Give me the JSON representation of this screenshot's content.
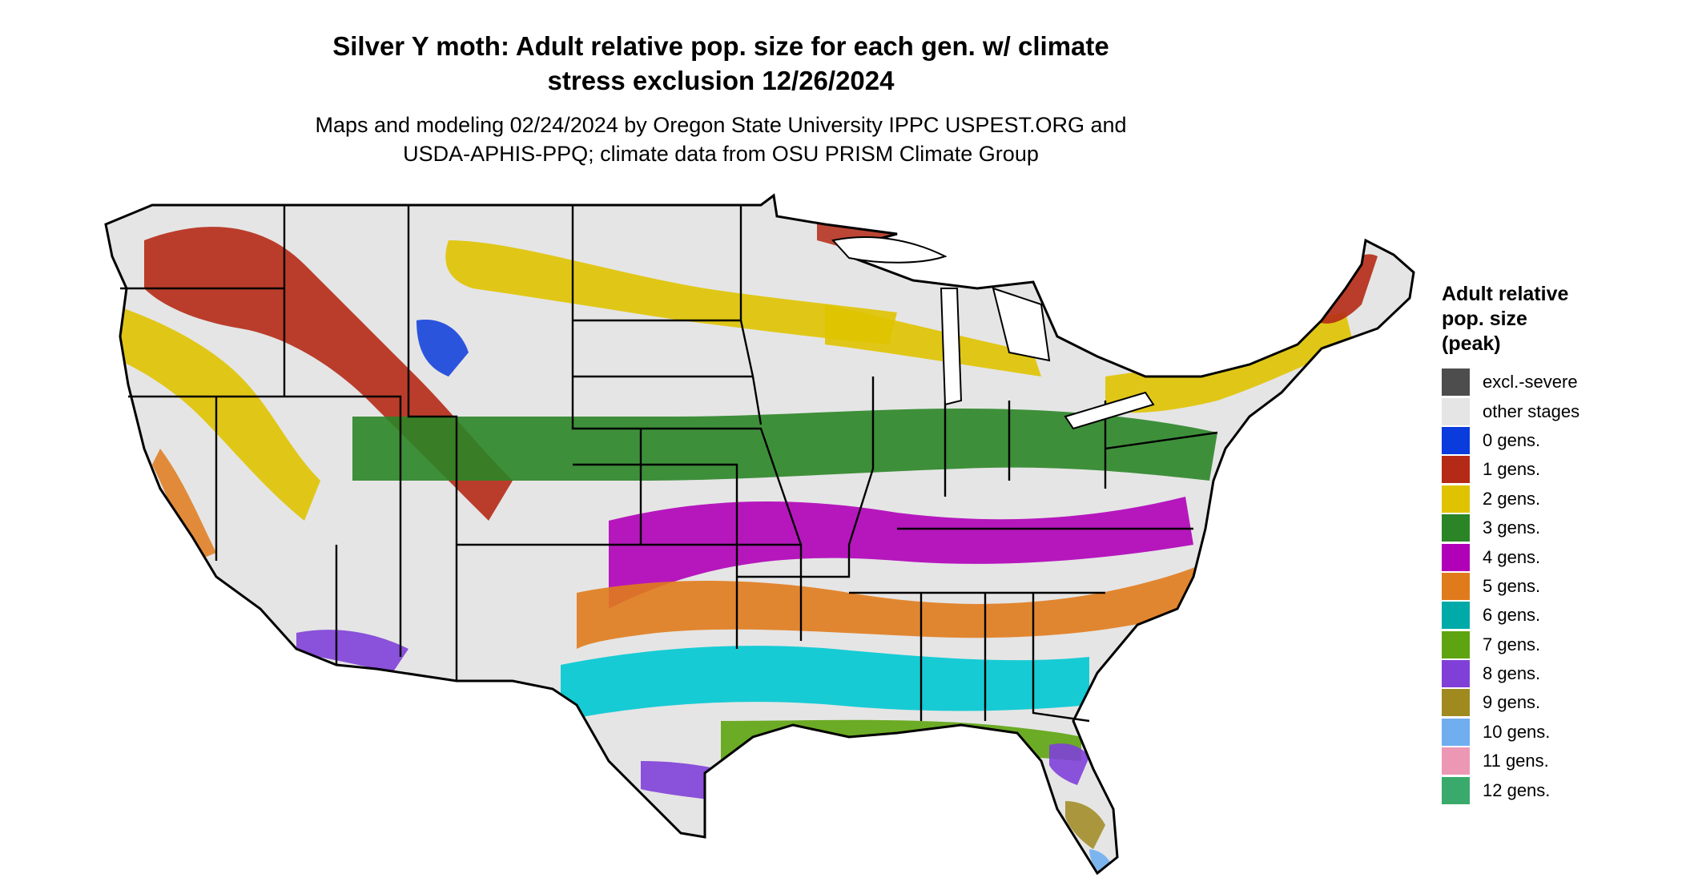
{
  "title_line1": "Silver Y moth: Adult relative pop. size for each gen. w/ climate",
  "title_line2": "stress exclusion 12/26/2024",
  "subtitle_line1": "Maps and modeling 02/24/2024 by Oregon State University IPPC USPEST.ORG and",
  "subtitle_line2": "USDA-APHIS-PPQ; climate data from OSU PRISM Climate Group",
  "legend": {
    "title_line1": "Adult relative",
    "title_line2": "pop. size",
    "title_line3": "(peak)",
    "items": [
      {
        "label": "excl.-severe",
        "color": "#4d4d4d"
      },
      {
        "label": "other stages",
        "color": "#e5e5e5"
      },
      {
        "label": "0 gens.",
        "color": "#0a3bdc"
      },
      {
        "label": "1 gens.",
        "color": "#b52a16"
      },
      {
        "label": "2 gens.",
        "color": "#dfc300"
      },
      {
        "label": "3 gens.",
        "color": "#2b8527"
      },
      {
        "label": "4 gens.",
        "color": "#b000b8"
      },
      {
        "label": "5 gens.",
        "color": "#e07b1c"
      },
      {
        "label": "6 gens.",
        "color": "#00aaa8"
      },
      {
        "label": "7 gens.",
        "color": "#5ea410"
      },
      {
        "label": "8 gens.",
        "color": "#8040d8"
      },
      {
        "label": "9 gens.",
        "color": "#a08a20"
      },
      {
        "label": "10 gens.",
        "color": "#70aef0"
      },
      {
        "label": "11 gens.",
        "color": "#ec98b4"
      },
      {
        "label": "12 gens.",
        "color": "#3aaa6c"
      }
    ]
  }
}
